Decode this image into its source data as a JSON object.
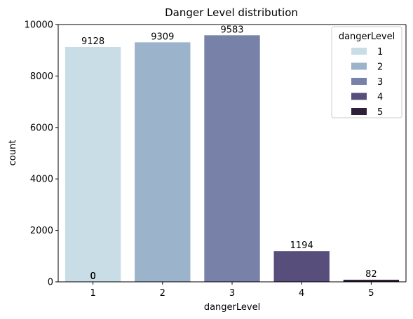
{
  "chart_data": {
    "type": "bar",
    "title": "Danger Level distribution",
    "xlabel": "dangerLevel",
    "ylabel": "count",
    "categories": [
      "1",
      "2",
      "3",
      "4",
      "5"
    ],
    "values": [
      9128,
      9309,
      9583,
      1194,
      82
    ],
    "bar_labels": [
      "9128",
      "9309",
      "9583",
      "1194",
      "82"
    ],
    "zero_labels": [
      "0",
      "0",
      "0",
      "0"
    ],
    "ylim": [
      0,
      10000
    ],
    "yticks": [
      0,
      2000,
      4000,
      6000,
      8000,
      10000
    ],
    "ytick_labels": [
      "0",
      "2000",
      "4000",
      "6000",
      "8000",
      "10000"
    ],
    "grid": false,
    "legend": {
      "title": "dangerLevel",
      "placement": "top-right",
      "entries": [
        "1",
        "2",
        "3",
        "4",
        "5"
      ]
    },
    "colors": [
      "#c9dde6",
      "#9bb3cb",
      "#7882a8",
      "#584e7c",
      "#2e2039"
    ]
  }
}
